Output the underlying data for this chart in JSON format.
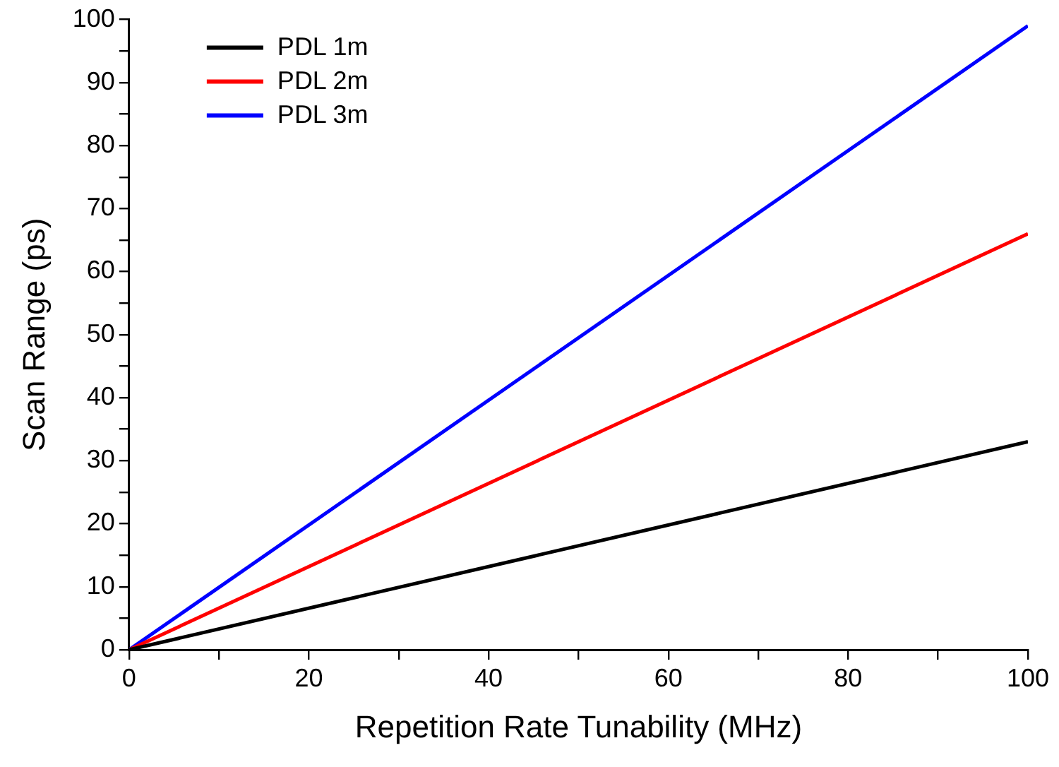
{
  "chart_data": {
    "type": "line",
    "xlabel": "Repetition Rate Tunability (MHz)",
    "ylabel": "Scan Range (ps)",
    "x": [
      0,
      100
    ],
    "series": [
      {
        "name": "PDL 1m",
        "color": "#000000",
        "values": [
          0,
          33
        ]
      },
      {
        "name": "PDL 2m",
        "color": "#ff0000",
        "values": [
          0,
          66
        ]
      },
      {
        "name": "PDL 3m",
        "color": "#0000ff",
        "values": [
          0,
          99
        ]
      }
    ],
    "xlim": [
      0,
      100
    ],
    "xticks": [
      0,
      {
        "value": 10,
        "label": null
      },
      20,
      {
        "value": 30,
        "label": null
      },
      40,
      {
        "value": 50,
        "label": null
      },
      60,
      {
        "value": 70,
        "label": null
      },
      80,
      {
        "value": 90,
        "label": null
      },
      100
    ],
    "ylim": [
      0,
      100
    ],
    "yticks": [
      0,
      {
        "value": 5,
        "label": null
      },
      10,
      {
        "value": 15,
        "label": null
      },
      20,
      {
        "value": 25,
        "label": null
      },
      30,
      {
        "value": 35,
        "label": null
      },
      40,
      {
        "value": 45,
        "label": null
      },
      50,
      {
        "value": 55,
        "label": null
      },
      60,
      {
        "value": 65,
        "label": null
      },
      70,
      {
        "value": 75,
        "label": null
      },
      80,
      {
        "value": 85,
        "label": null
      },
      90,
      {
        "value": 95,
        "label": null
      },
      100
    ],
    "legend": "top left",
    "grid": false,
    "marker": "none",
    "line_style": "solid"
  }
}
